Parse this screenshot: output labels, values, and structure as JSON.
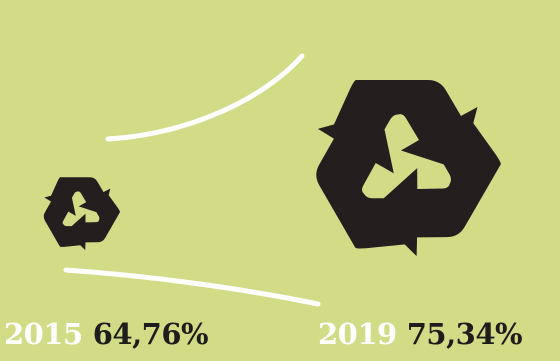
{
  "colors": {
    "background": "#d2dc86",
    "symbol": "#231f1e",
    "connector": "#ffffff",
    "year_text": "#ffffff",
    "value_text": "#1f1d1c"
  },
  "icons": {
    "small": "recycle-icon",
    "large": "recycle-icon"
  },
  "entries": [
    {
      "year": "2015",
      "value": "64,76%"
    },
    {
      "year": "2019",
      "value": "75,34%"
    }
  ]
}
